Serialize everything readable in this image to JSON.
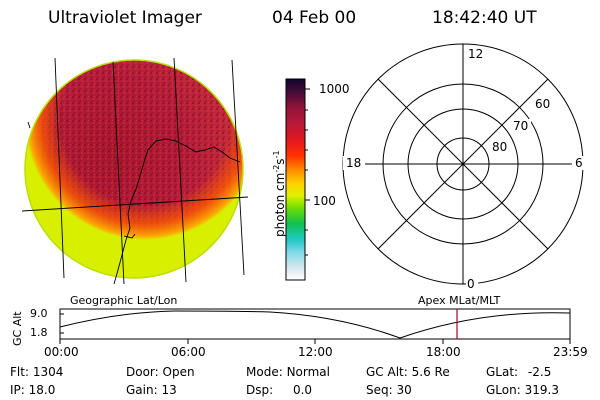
{
  "header": {
    "instrument": "Ultraviolet Imager",
    "date": "04 Feb 00",
    "time": "18:42:40 UT"
  },
  "colorbar": {
    "unit_label": "photon cm",
    "unit_exp1": "-2",
    "unit_s": "s",
    "unit_exp2": "-1",
    "ticks": [
      "1000",
      "100"
    ]
  },
  "polar_plot": {
    "mlt_labels": {
      "top": "12",
      "bottom": "0",
      "left": "18",
      "right": "6"
    },
    "lat_labels": [
      "60",
      "70",
      "80"
    ]
  },
  "projection_labels": {
    "left": "Geographic Lat/Lon",
    "right": "Apex  MLat/MLT"
  },
  "altitude_plot": {
    "ylabel": "GC Alt",
    "yticks": [
      "9.0",
      "1.8"
    ],
    "xticks": [
      "00:00",
      "06:00",
      "12:00",
      "18:00",
      "23:59"
    ],
    "marker_time": "18:42"
  },
  "status": [
    [
      {
        "label": "Flt:",
        "value": "1304"
      },
      {
        "label": "Door:",
        "value": "Open"
      },
      {
        "label": "Mode:",
        "value": "Normal"
      },
      {
        "label": "GC Alt:",
        "value": "5.6 Re"
      },
      {
        "label": "GLat:",
        "value": "-2.5"
      }
    ],
    [
      {
        "label": "IP:",
        "value": "18.0"
      },
      {
        "label": "Gain:",
        "value": "13"
      },
      {
        "label": "Dsp:",
        "value": "0.0"
      },
      {
        "label": "Seq:",
        "value": "30"
      },
      {
        "label": "GLon:",
        "value": "319.3"
      }
    ]
  ],
  "colors": {
    "disk_base": "#b01838",
    "limb_bright": "#ff7000",
    "limb_edge": "#c8e000",
    "marker": "#b00020"
  }
}
